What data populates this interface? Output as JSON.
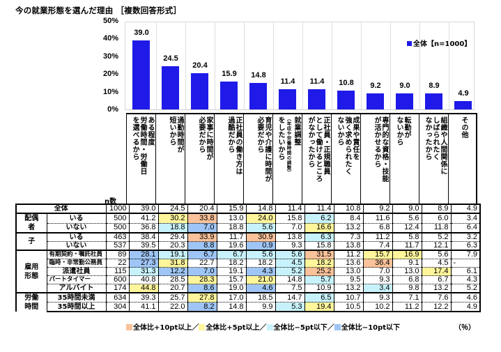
{
  "title": "今の就業形態を選んだ理由 ［複数回答形式］",
  "chart_data": {
    "type": "bar",
    "title": "今の就業形態を選んだ理由 ［複数回答形式］",
    "ylabel": "%",
    "ylim": [
      0,
      50
    ],
    "yticks": [
      "50%",
      "40%",
      "30%",
      "20%",
      "10%",
      "0%"
    ],
    "legend": "全体【n=1000】",
    "grid": "vertical separators",
    "categories": [
      "ある程度労働時間・労働日を選べるから",
      "通勤時間が短いから",
      "家事に時間が必要だから",
      "正社員の働き方は過酷だから",
      "育児や介護に時間が必要だから",
      "就業調整（年収や労働時間の調整）をしたいから",
      "正社員・正規職員として働けるところがなかったから",
      "成果や責任を強く求められたくないから",
      "専門的な資格・技能が活かせるから",
      "転勤がないから",
      "組織や人間関係にしばられたくなかったから",
      "その他"
    ],
    "series": [
      {
        "name": "全体【n=1000】",
        "values": [
          39.0,
          24.5,
          20.4,
          15.9,
          14.8,
          11.4,
          11.4,
          10.8,
          9.2,
          9.0,
          8.9,
          4.9
        ]
      }
    ]
  },
  "chart": {
    "yticks": [
      "50%",
      "40%",
      "30%",
      "20%",
      "10%",
      "0%"
    ],
    "legend": "全体【n=1000】",
    "bar_labels": [
      "39.0",
      "24.5",
      "20.4",
      "15.9",
      "14.8",
      "11.4",
      "11.4",
      "10.8",
      "9.2",
      "9.0",
      "8.9",
      "4.9"
    ],
    "bar_color": "#1f1ae8"
  },
  "headers": [
    "ある程度\n労働時間・労働日\nを選べるから",
    "通勤時間が\n短いから",
    "家事に時間が\n必要だから",
    "正社員の働き方は\n過酷だから",
    "育児や介護に時間が\n必要だから",
    "就業調整\n（年収や労働時間の調整）\nをしたいから",
    "正社員・正規職員\nとして働けるところ\nがなかったから",
    "成果や責任を\n強く求められたく\nないから",
    "専門的な資格・技能\nが活かせるから",
    "転勤が\nないから",
    "組織や人間関係に\nしばられたく\nなかったから",
    "その他"
  ],
  "n_label": "n数",
  "table": {
    "total": {
      "label": "全体",
      "n": "1000",
      "values": [
        "39.0",
        "24.5",
        "20.4",
        "15.9",
        "14.8",
        "11.4",
        "11.4",
        "10.8",
        "9.2",
        "9.0",
        "8.9",
        "4.9"
      ]
    },
    "groups": [
      {
        "name": "配偶者",
        "rows": [
          {
            "label": "いる",
            "n": "500",
            "values": [
              "41.2",
              "30.2",
              "33.8",
              "13.0",
              "24.0",
              "15.8",
              "6.2",
              "8.4",
              "11.6",
              "5.6",
              "6.0",
              "3.4"
            ],
            "colors": [
              "",
              "y",
              "o",
              "",
              "y",
              "",
              "lb",
              "",
              "",
              "",
              "",
              ""
            ]
          },
          {
            "label": "いない",
            "n": "500",
            "values": [
              "36.8",
              "18.8",
              "7.0",
              "18.8",
              "5.6",
              "7.0",
              "16.6",
              "13.2",
              "6.8",
              "12.4",
              "11.8",
              "6.4"
            ],
            "colors": [
              "",
              "lb",
              "b",
              "",
              "lb",
              "",
              "y",
              "",
              "",
              "",
              "",
              ""
            ]
          }
        ]
      },
      {
        "name": "子",
        "rows": [
          {
            "label": "いる",
            "n": "463",
            "values": [
              "38.4",
              "29.4",
              "33.9",
              "11.7",
              "30.9",
              "13.8",
              "6.3",
              "7.3",
              "11.2",
              "5.8",
              "5.2",
              "3.2"
            ],
            "colors": [
              "",
              "",
              "o",
              "",
              "o",
              "",
              "lb",
              "",
              "",
              "",
              "",
              ""
            ]
          },
          {
            "label": "いない",
            "n": "537",
            "values": [
              "39.5",
              "20.3",
              "8.8",
              "19.6",
              "0.9",
              "9.3",
              "15.8",
              "13.8",
              "7.4",
              "11.7",
              "12.1",
              "6.3"
            ],
            "colors": [
              "",
              "",
              "b",
              "",
              "b",
              "",
              "",
              "",
              "",
              "",
              "",
              ""
            ]
          }
        ]
      },
      {
        "name": "雇用形態",
        "rows": [
          {
            "label": "有期契約・嘱託社員",
            "n": "89",
            "values": [
              "28.1",
              "19.1",
              "6.7",
              "6.7",
              "5.6",
              "5.6",
              "31.5",
              "11.2",
              "15.7",
              "16.9",
              "5.6",
              "7.9"
            ],
            "colors": [
              "b",
              "lb",
              "b",
              "lb",
              "lb",
              "lb",
              "o",
              "",
              "y",
              "y",
              "",
              ""
            ]
          },
          {
            "label": "臨時・非常勤公務員",
            "n": "22",
            "values": [
              "27.3",
              "31.8",
              "22.7",
              "18.2",
              "18.2",
              "4.5",
              "18.2",
              "13.6",
              "36.4",
              "9.1",
              "4.5",
              "-"
            ],
            "colors": [
              "b",
              "y",
              "",
              "",
              "",
              "lb",
              "y",
              "",
              "o",
              "",
              "",
              ""
            ]
          },
          {
            "label": "派遣社員",
            "n": "115",
            "values": [
              "31.3",
              "12.2",
              "7.0",
              "19.1",
              "4.3",
              "5.2",
              "25.2",
              "13.0",
              "7.0",
              "13.0",
              "17.4",
              "6.1"
            ],
            "colors": [
              "lb",
              "b",
              "b",
              "",
              "b",
              "lb",
              "o",
              "",
              "",
              "",
              "y",
              ""
            ]
          },
          {
            "label": "パートタイマー",
            "n": "600",
            "values": [
              "40.8",
              "28.5",
              "28.3",
              "15.7",
              "21.0",
              "14.8",
              "5.7",
              "9.5",
              "9.3",
              "6.8",
              "6.7",
              "4.3"
            ],
            "colors": [
              "",
              "",
              "y",
              "",
              "y",
              "",
              "lb",
              "",
              "",
              "",
              "",
              ""
            ]
          },
          {
            "label": "アルバイト",
            "n": "174",
            "values": [
              "44.8",
              "20.7",
              "8.6",
              "19.0",
              "4.6",
              "7.5",
              "10.9",
              "13.2",
              "3.4",
              "9.8",
              "13.2",
              "5.2"
            ],
            "colors": [
              "y",
              "",
              "b",
              "",
              "b",
              "",
              "",
              "",
              "lb",
              "",
              "",
              ""
            ]
          }
        ]
      },
      {
        "name": "労働時間",
        "rows": [
          {
            "label": "35時間未満",
            "n": "634",
            "values": [
              "39.3",
              "25.7",
              "27.8",
              "17.0",
              "18.5",
              "14.7",
              "6.5",
              "10.7",
              "9.3",
              "7.1",
              "7.6",
              "4.6"
            ],
            "colors": [
              "",
              "",
              "y",
              "",
              "",
              "",
              "lb",
              "",
              "",
              "",
              "",
              ""
            ]
          },
          {
            "label": "35時間以上",
            "n": "304",
            "values": [
              "41.1",
              "22.0",
              "8.2",
              "14.8",
              "9.9",
              "5.3",
              "19.4",
              "10.5",
              "10.2",
              "11.2",
              "12.2",
              "4.9"
            ],
            "colors": [
              "",
              "",
              "b",
              "",
              "",
              "lb",
              "y",
              "",
              "",
              "",
              "",
              ""
            ]
          }
        ]
      }
    ]
  },
  "notes": {
    "items": [
      {
        "label": "全体比+10pt以上／",
        "color": "#fac29a"
      },
      {
        "label": "全体比+5pt以上／",
        "color": "#fff59b"
      },
      {
        "label": "全体比−5pt以下／",
        "color": "#c8f2fb"
      },
      {
        "label": "全体比−10pt以下",
        "color": "#9ec5f5"
      }
    ],
    "unit": "（％）"
  }
}
